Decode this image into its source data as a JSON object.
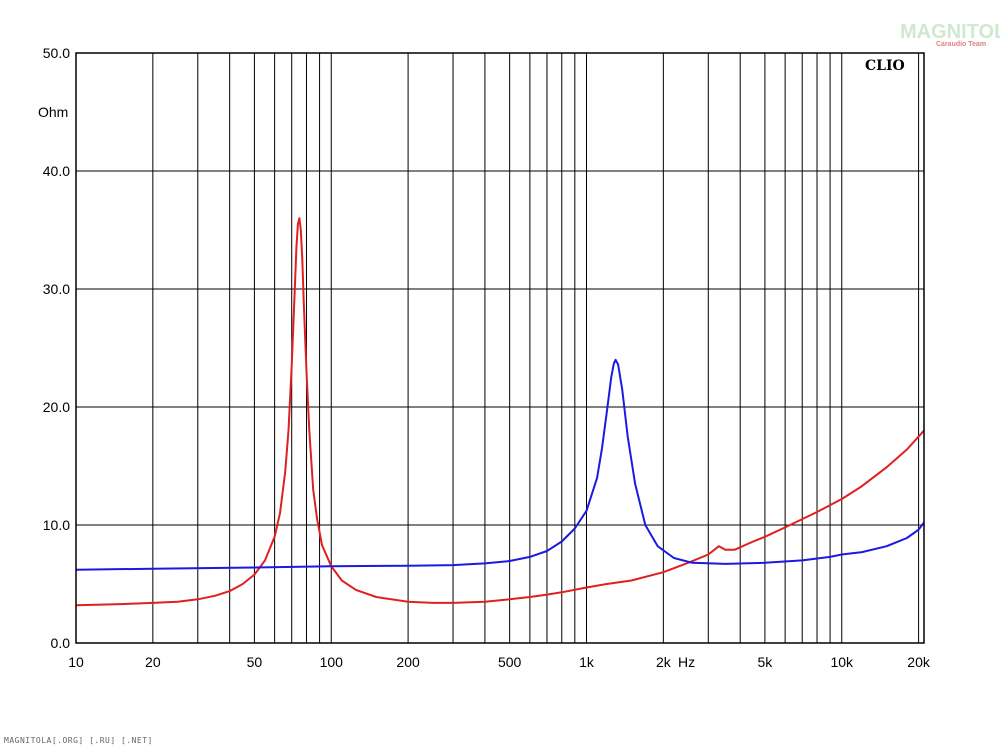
{
  "watermark": {
    "main": "MAGNITOLA",
    "sub": "Caraudio Team"
  },
  "footer": "MAGNITOLA[.ORG] [.RU] [.NET]",
  "chart_data": {
    "type": "line",
    "brand": "CLIO",
    "ylabel": "Ohm",
    "xunit": "Hz",
    "xscale": "log",
    "xlim": [
      10,
      21000
    ],
    "ylim": [
      0,
      50
    ],
    "grid": true,
    "yticks": [
      0,
      10,
      20,
      30,
      40,
      50
    ],
    "ytick_labels": [
      "0.0",
      "10.0",
      "20.0",
      "30.0",
      "40.0",
      "50.0"
    ],
    "xticks": [
      10,
      20,
      50,
      100,
      200,
      500,
      1000,
      2000,
      5000,
      10000,
      20000
    ],
    "xtick_labels": [
      "10",
      "20",
      "50",
      "100",
      "200",
      "500",
      "1k",
      "2k",
      "5k",
      "10k",
      "20k"
    ],
    "series": [
      {
        "color": "#e02020",
        "points": [
          [
            10,
            3.2
          ],
          [
            15,
            3.3
          ],
          [
            20,
            3.4
          ],
          [
            25,
            3.5
          ],
          [
            30,
            3.7
          ],
          [
            35,
            4.0
          ],
          [
            40,
            4.4
          ],
          [
            45,
            5.0
          ],
          [
            50,
            5.8
          ],
          [
            55,
            7.0
          ],
          [
            60,
            9.0
          ],
          [
            63,
            11.0
          ],
          [
            66,
            14.5
          ],
          [
            68,
            18.0
          ],
          [
            70,
            23.5
          ],
          [
            72,
            30.0
          ],
          [
            73,
            33.5
          ],
          [
            74,
            35.5
          ],
          [
            75,
            36.0
          ],
          [
            76,
            35.0
          ],
          [
            77,
            32.5
          ],
          [
            78,
            29.0
          ],
          [
            80,
            23.0
          ],
          [
            82,
            18.0
          ],
          [
            85,
            13.0
          ],
          [
            88,
            10.5
          ],
          [
            92,
            8.3
          ],
          [
            100,
            6.5
          ],
          [
            110,
            5.3
          ],
          [
            125,
            4.5
          ],
          [
            150,
            3.9
          ],
          [
            200,
            3.5
          ],
          [
            250,
            3.4
          ],
          [
            300,
            3.4
          ],
          [
            400,
            3.5
          ],
          [
            500,
            3.7
          ],
          [
            600,
            3.9
          ],
          [
            700,
            4.1
          ],
          [
            800,
            4.3
          ],
          [
            1000,
            4.7
          ],
          [
            1200,
            5.0
          ],
          [
            1500,
            5.3
          ],
          [
            2000,
            6.0
          ],
          [
            2500,
            6.8
          ],
          [
            3000,
            7.5
          ],
          [
            3300,
            8.2
          ],
          [
            3500,
            7.9
          ],
          [
            3800,
            7.9
          ],
          [
            4500,
            8.6
          ],
          [
            5000,
            9.0
          ],
          [
            6000,
            9.8
          ],
          [
            7000,
            10.5
          ],
          [
            8000,
            11.1
          ],
          [
            10000,
            12.2
          ],
          [
            12000,
            13.3
          ],
          [
            15000,
            14.9
          ],
          [
            18000,
            16.4
          ],
          [
            21000,
            18.0
          ]
        ]
      },
      {
        "color": "#1a1ae0",
        "points": [
          [
            10,
            6.2
          ],
          [
            20,
            6.3
          ],
          [
            50,
            6.4
          ],
          [
            100,
            6.5
          ],
          [
            200,
            6.55
          ],
          [
            300,
            6.6
          ],
          [
            400,
            6.75
          ],
          [
            500,
            6.95
          ],
          [
            600,
            7.3
          ],
          [
            700,
            7.8
          ],
          [
            800,
            8.6
          ],
          [
            900,
            9.7
          ],
          [
            1000,
            11.2
          ],
          [
            1100,
            14.0
          ],
          [
            1150,
            16.5
          ],
          [
            1200,
            19.5
          ],
          [
            1250,
            22.5
          ],
          [
            1280,
            23.7
          ],
          [
            1300,
            24.0
          ],
          [
            1330,
            23.6
          ],
          [
            1380,
            21.5
          ],
          [
            1450,
            17.5
          ],
          [
            1550,
            13.5
          ],
          [
            1700,
            10.0
          ],
          [
            1900,
            8.2
          ],
          [
            2200,
            7.2
          ],
          [
            2600,
            6.8
          ],
          [
            3500,
            6.7
          ],
          [
            5000,
            6.8
          ],
          [
            7000,
            7.0
          ],
          [
            9000,
            7.3
          ],
          [
            10000,
            7.5
          ],
          [
            12000,
            7.7
          ],
          [
            15000,
            8.2
          ],
          [
            18000,
            8.9
          ],
          [
            20000,
            9.6
          ],
          [
            21000,
            10.2
          ]
        ]
      }
    ]
  }
}
